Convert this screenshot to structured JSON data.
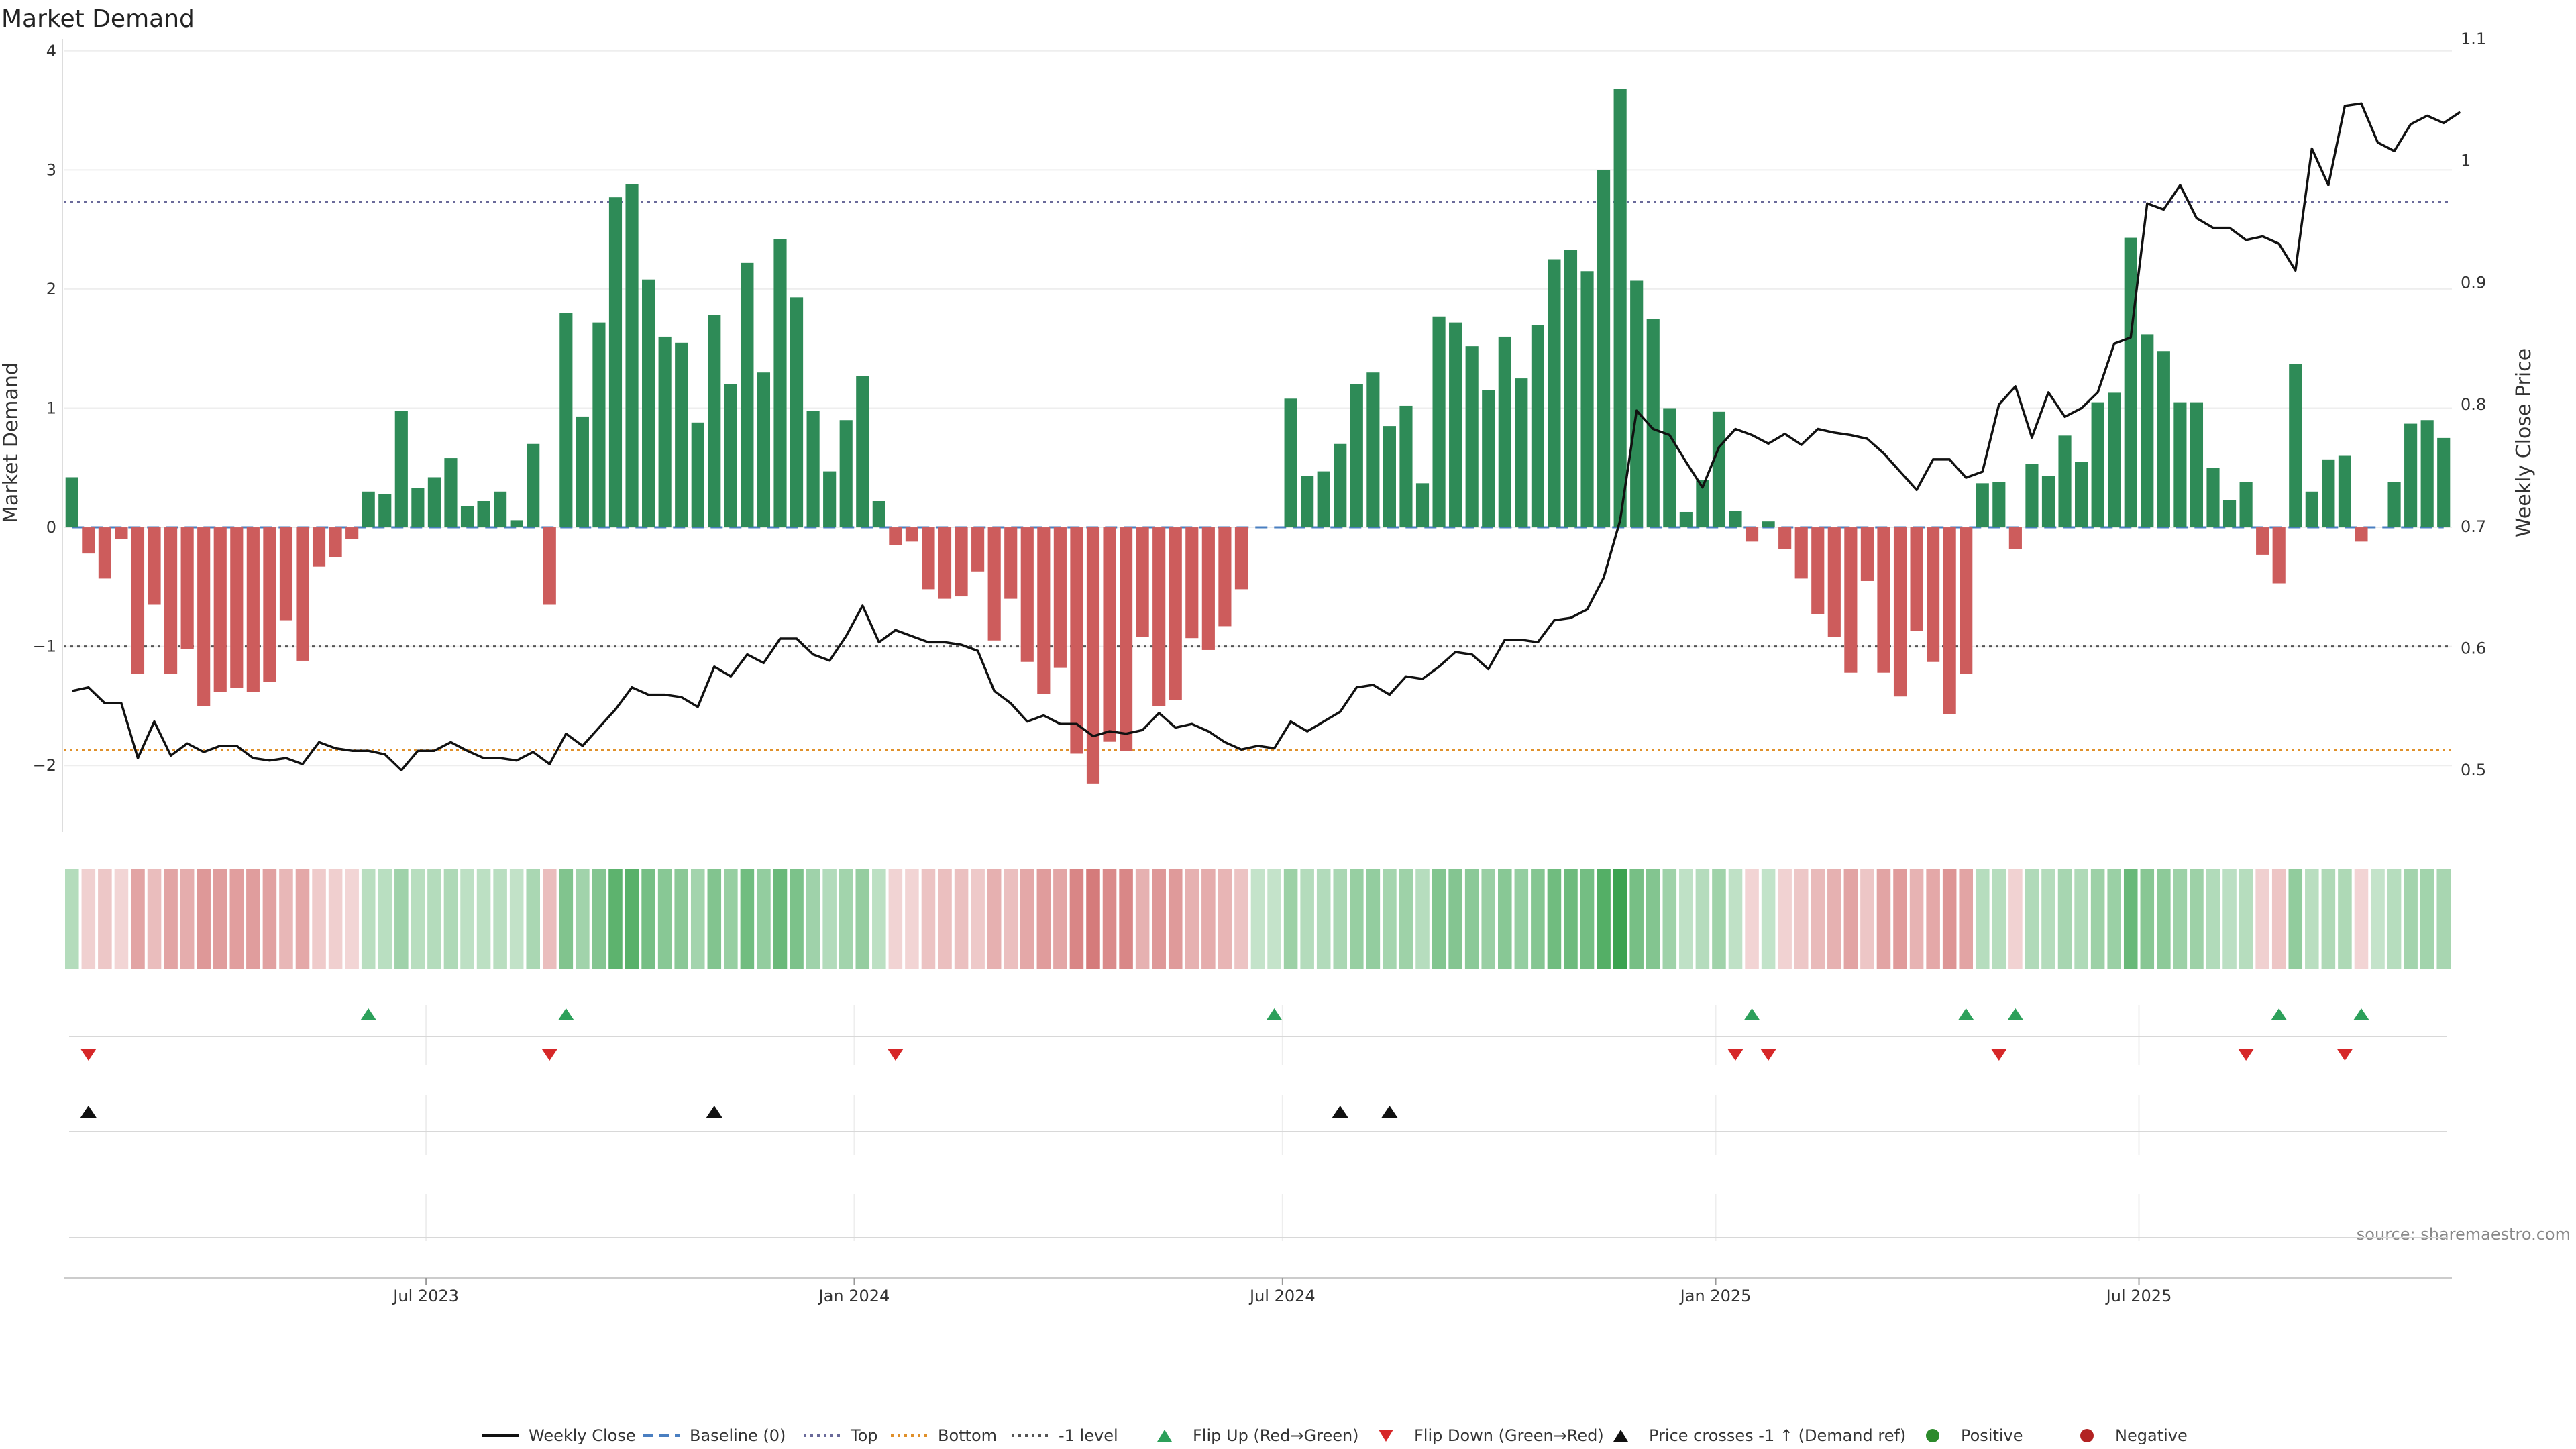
{
  "chart_data": {
    "type": "bar",
    "title": "Market Demand",
    "ylabel": "Market Demand",
    "y2label": "Weekly Close Price",
    "ylim": [
      -2.5,
      4.1
    ],
    "y2lim": [
      0.455,
      1.1
    ],
    "yticks": [
      -2,
      -1,
      0,
      1,
      2,
      3,
      4
    ],
    "y2ticks": [
      "0.5",
      "0.6",
      "0.7",
      "0.8",
      "0.9",
      "1",
      "1.1"
    ],
    "x_start": "2023-02-13",
    "x_end": "2025-10-27",
    "xticks": [
      {
        "label": "Jul 2023",
        "week": 22
      },
      {
        "label": "Jan 2024",
        "week": 48
      },
      {
        "label": "Jul 2024",
        "week": 74
      },
      {
        "label": "Jan 2025",
        "week": 100.3
      },
      {
        "label": "Jul 2025",
        "week": 126
      }
    ],
    "reference_lines": {
      "top": 2.73,
      "bottom": -1.87,
      "minus_one": -1.0,
      "baseline": 0
    },
    "demand": [
      0.42,
      -0.22,
      -0.43,
      -0.1,
      -1.23,
      -0.65,
      -1.23,
      -1.02,
      -1.5,
      -1.38,
      -1.35,
      -1.38,
      -1.3,
      -0.78,
      -1.12,
      -0.33,
      -0.25,
      -0.1,
      0.3,
      0.28,
      0.98,
      0.33,
      0.42,
      0.58,
      0.18,
      0.22,
      0.3,
      0.06,
      0.7,
      -0.65,
      1.8,
      0.93,
      1.72,
      2.77,
      2.88,
      2.08,
      1.6,
      1.55,
      0.88,
      1.78,
      1.2,
      2.22,
      1.3,
      2.42,
      1.93,
      0.98,
      0.47,
      0.9,
      1.27,
      0.22,
      -0.15,
      -0.12,
      -0.52,
      -0.6,
      -0.58,
      -0.37,
      -0.95,
      -0.6,
      -1.13,
      -1.4,
      -1.18,
      -1.9,
      -2.15,
      -1.8,
      -1.88,
      -0.92,
      -1.5,
      -1.45,
      -0.93,
      -1.03,
      -0.83,
      -0.52,
      0,
      0.0,
      1.08,
      0.43,
      0.47,
      0.7,
      1.2,
      1.3,
      0.85,
      1.02,
      0.37,
      1.77,
      1.72,
      1.52,
      1.15,
      1.6,
      1.25,
      1.7,
      2.25,
      2.33,
      2.15,
      3.0,
      3.68,
      2.07,
      1.75,
      1.0,
      0.13,
      0.4,
      0.97,
      0.14,
      -0.12,
      0.05,
      -0.18,
      -0.43,
      -0.73,
      -0.92,
      -1.22,
      -0.45,
      -1.22,
      -1.42,
      -0.87,
      -1.13,
      -1.57,
      -1.23,
      0.37,
      0.38,
      -0.18,
      0.53,
      0.43,
      0.77,
      0.55,
      1.05,
      1.13,
      2.43,
      1.62,
      1.48,
      1.05,
      1.05,
      0.5,
      0.23,
      0.38,
      -0.23,
      -0.47,
      1.37,
      0.3,
      0.57,
      0.6,
      -0.12,
      0.0,
      0.38,
      0.87,
      0.9,
      0.75
    ],
    "weekly_close": [
      0.565,
      0.568,
      0.555,
      0.555,
      0.51,
      0.54,
      0.512,
      0.522,
      0.515,
      0.52,
      0.52,
      0.51,
      0.508,
      0.51,
      0.505,
      0.523,
      0.518,
      0.516,
      0.516,
      0.513,
      0.5,
      0.516,
      0.516,
      0.523,
      0.516,
      0.51,
      0.51,
      0.508,
      0.515,
      0.505,
      0.53,
      0.52,
      0.535,
      0.55,
      0.568,
      0.562,
      0.562,
      0.56,
      0.552,
      0.585,
      0.577,
      0.595,
      0.588,
      0.608,
      0.608,
      0.595,
      0.59,
      0.61,
      0.635,
      0.605,
      0.615,
      0.61,
      0.605,
      0.605,
      0.603,
      0.598,
      0.565,
      0.555,
      0.54,
      0.545,
      0.538,
      0.538,
      0.528,
      0.532,
      0.53,
      0.533,
      0.547,
      0.535,
      0.538,
      0.532,
      0.523,
      0.517,
      0.52,
      0.518,
      0.54,
      0.532,
      0.54,
      0.548,
      0.568,
      0.57,
      0.562,
      0.577,
      0.575,
      0.585,
      0.597,
      0.595,
      0.583,
      0.607,
      0.607,
      0.605,
      0.623,
      0.625,
      0.632,
      0.658,
      0.705,
      0.795,
      0.78,
      0.775,
      0.753,
      0.732,
      0.765,
      0.78,
      0.775,
      0.768,
      0.776,
      0.767,
      0.78,
      0.777,
      0.775,
      0.772,
      0.76,
      0.745,
      0.73,
      0.755,
      0.755,
      0.74,
      0.745,
      0.8,
      0.815,
      0.773,
      0.81,
      0.79,
      0.797,
      0.81,
      0.85,
      0.855,
      0.965,
      0.96,
      0.98,
      0.953,
      0.945,
      0.945,
      0.935,
      0.938,
      0.932,
      0.91,
      1.01,
      0.98,
      1.045,
      1.047,
      1.015,
      1.008,
      1.03,
      1.037,
      1.031,
      1.04
    ],
    "heat_strip": "intensity per week derived from demand",
    "flip_up_weeks": [
      18,
      30,
      73,
      102,
      115,
      118,
      134,
      139
    ],
    "flip_down_weeks": [
      1,
      29,
      50,
      101,
      103,
      117,
      132,
      138
    ],
    "price_cross_weeks": [
      1,
      39,
      77,
      80
    ],
    "legend": [
      {
        "label": "Weekly Close",
        "kind": "line",
        "color": "#111111"
      },
      {
        "label": "Baseline (0)",
        "kind": "dash",
        "color": "#4a7fc1"
      },
      {
        "label": "Top",
        "kind": "dot",
        "color": "#6a6a9a"
      },
      {
        "label": "Bottom",
        "kind": "dot",
        "color": "#e0902a"
      },
      {
        "label": "-1 level",
        "kind": "dot",
        "color": "#555555"
      },
      {
        "label": "Flip Up (Red→Green)",
        "kind": "tri-up",
        "color": "#2ca05a"
      },
      {
        "label": "Flip Down (Green→Red)",
        "kind": "tri-down",
        "color": "#d62728"
      },
      {
        "label": "Price crosses -1 ↑ (Demand ref)",
        "kind": "tri-up",
        "color": "#111111"
      },
      {
        "label": "Positive",
        "kind": "dot-marker",
        "color": "#2b8a2b"
      },
      {
        "label": "Negative",
        "kind": "dot-marker",
        "color": "#b22222"
      }
    ],
    "source": "source: sharemaestro.com"
  },
  "colors": {
    "positive_bar": "#2e8b57",
    "negative_bar": "#cd5c5c",
    "heat_positive": "#3aa34f",
    "heat_negative": "#d06a6a"
  }
}
